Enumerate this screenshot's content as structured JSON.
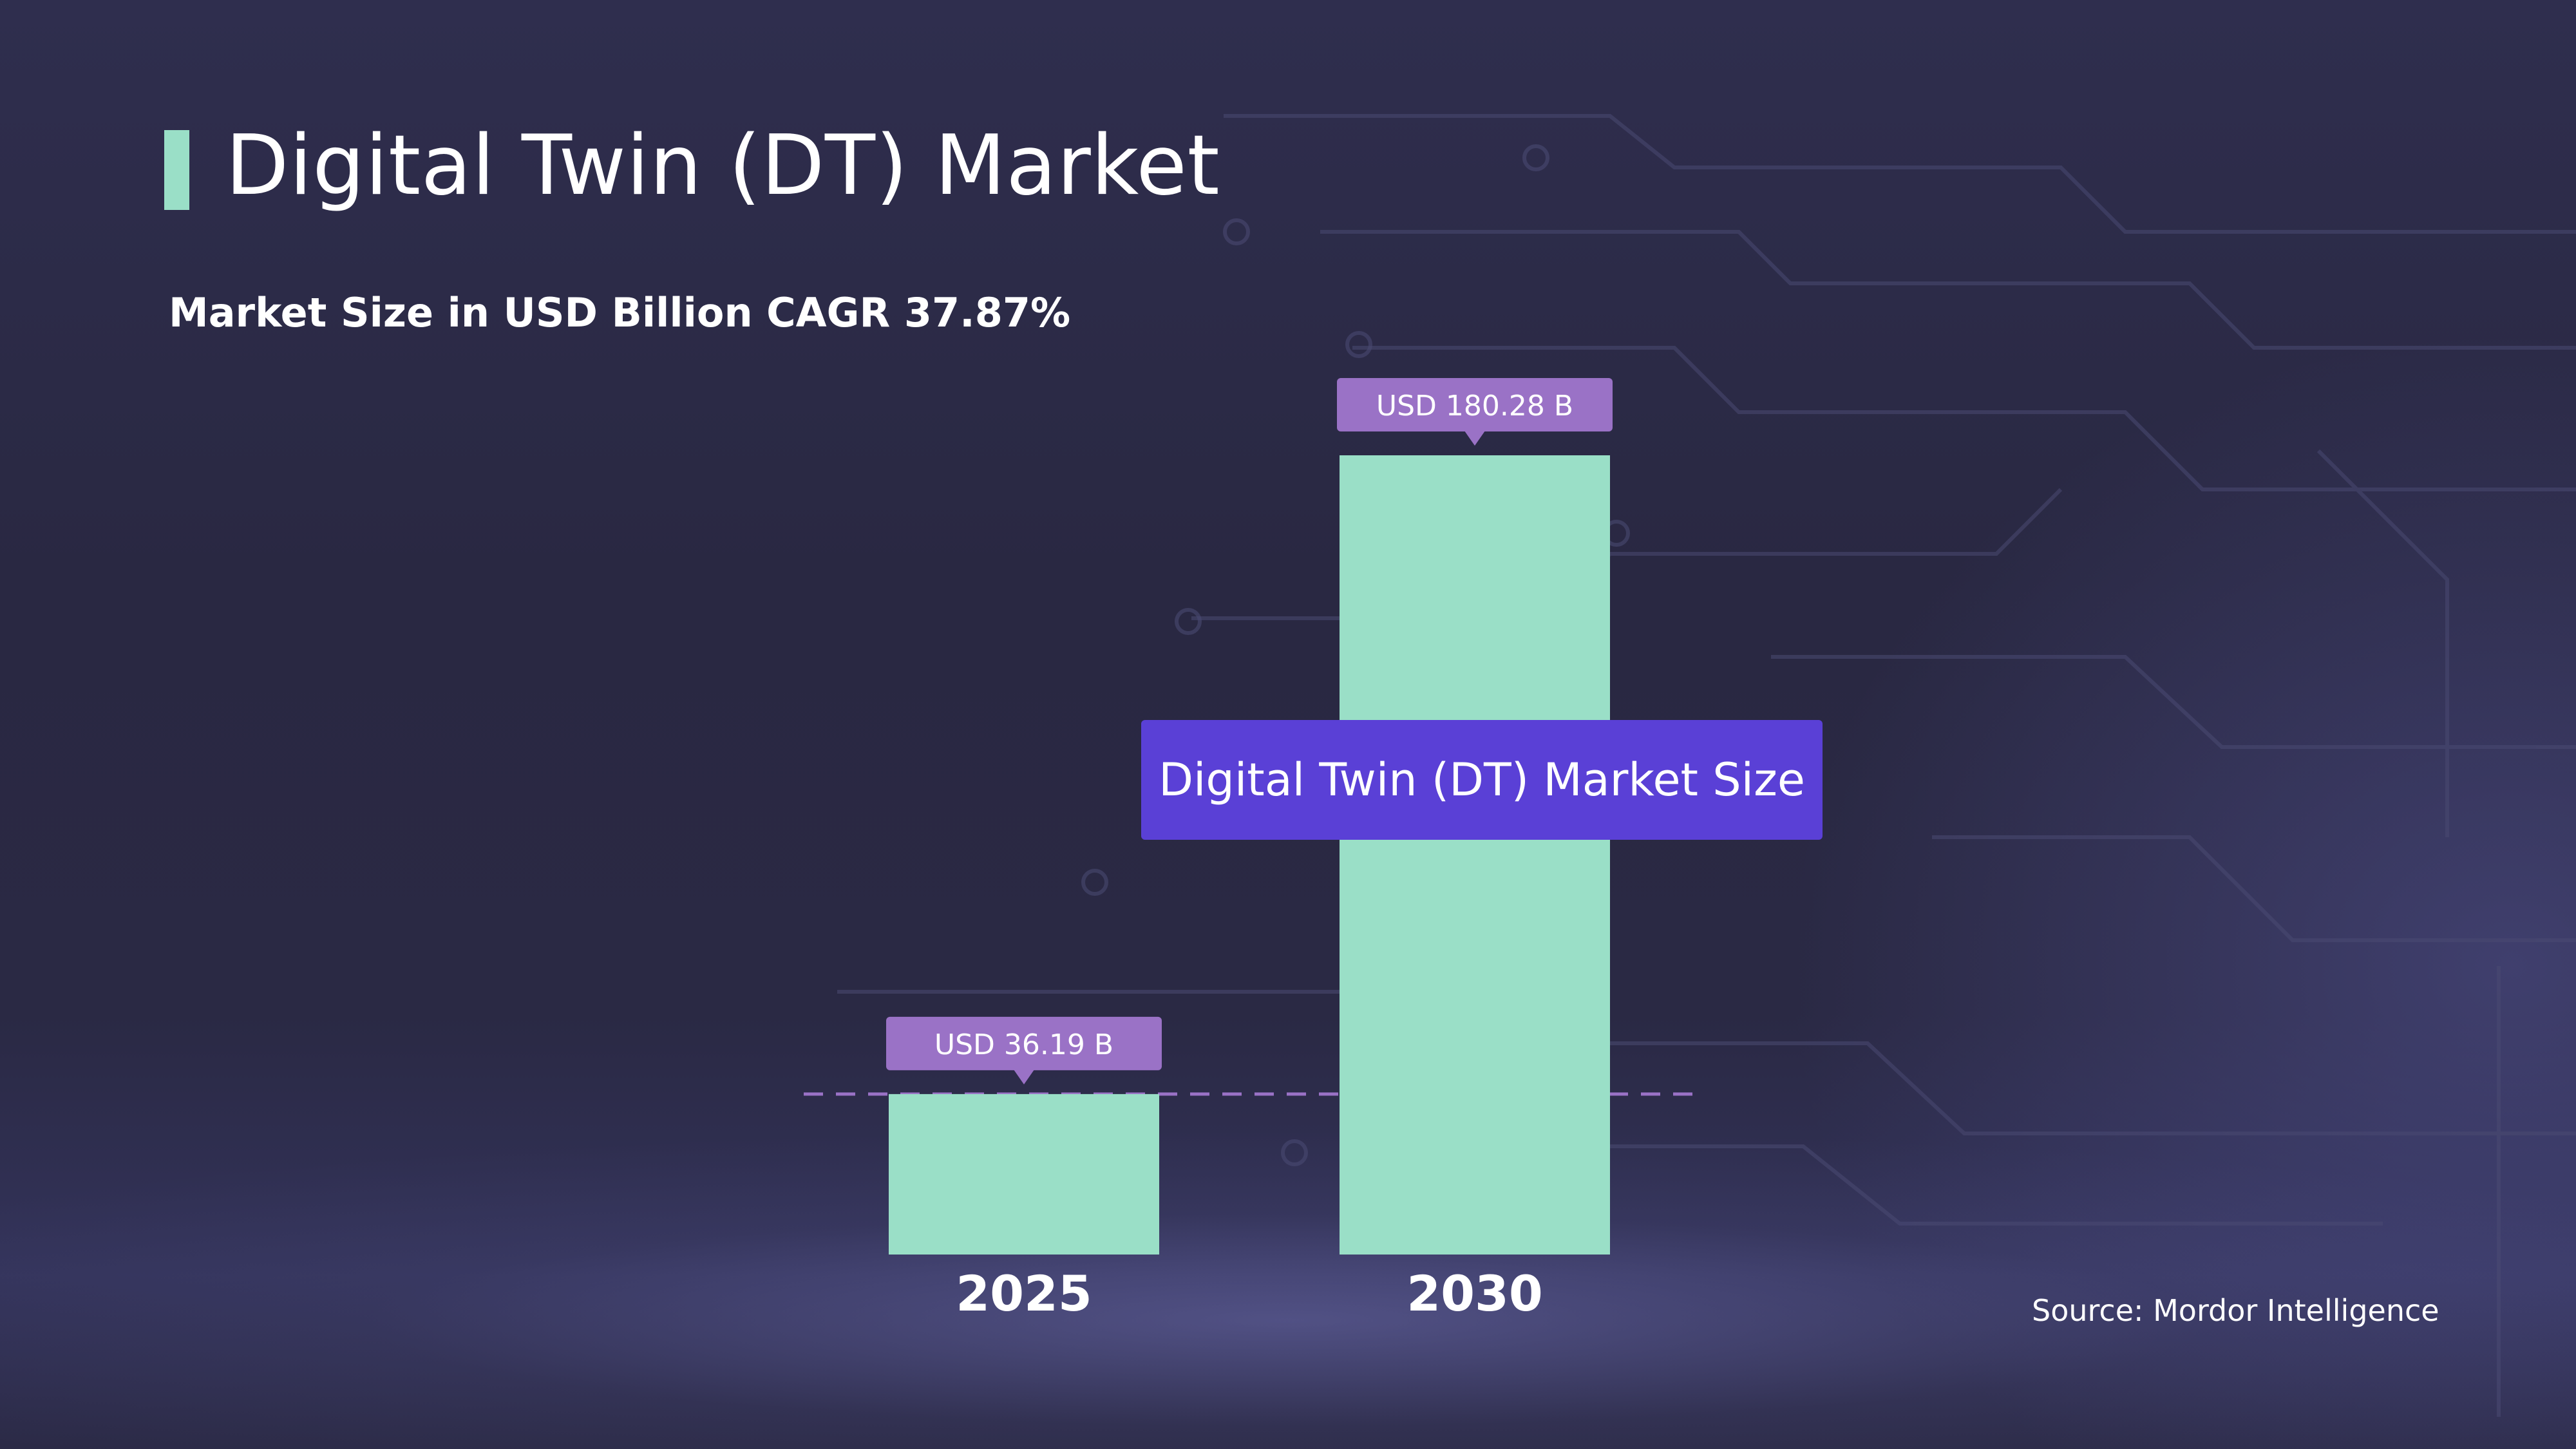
{
  "header": {
    "title": "Digital Twin (DT) Market",
    "subtitle": "Market Size in USD Billion CAGR 37.87%"
  },
  "legend": {
    "label": "Digital Twin (DT) Market Size"
  },
  "source": "Source: Mordor Intelligence",
  "colors": {
    "bar": "#9adfc7",
    "value_label_bg": "#9a72c6",
    "legend_bg": "#5a40d6",
    "accent": "#9adfc7",
    "dashed_line": "#9a72c6"
  },
  "chart_data": {
    "type": "bar",
    "title": "Digital Twin (DT) Market",
    "subtitle": "Market Size in USD Billion CAGR 37.87%",
    "xlabel": "",
    "ylabel": "",
    "categories": [
      "2025",
      "2030"
    ],
    "series": [
      {
        "name": "Digital Twin (DT) Market Size",
        "values": [
          36.19,
          180.28
        ],
        "labels": [
          "USD 36.19 B",
          "USD 180.28 B"
        ]
      }
    ],
    "ylim": [
      0,
      180.28
    ],
    "grid": false,
    "legend_position": "center",
    "reference_line": {
      "value": 36.19,
      "style": "dashed"
    },
    "annotations": [
      "Source: Mordor Intelligence"
    ]
  }
}
